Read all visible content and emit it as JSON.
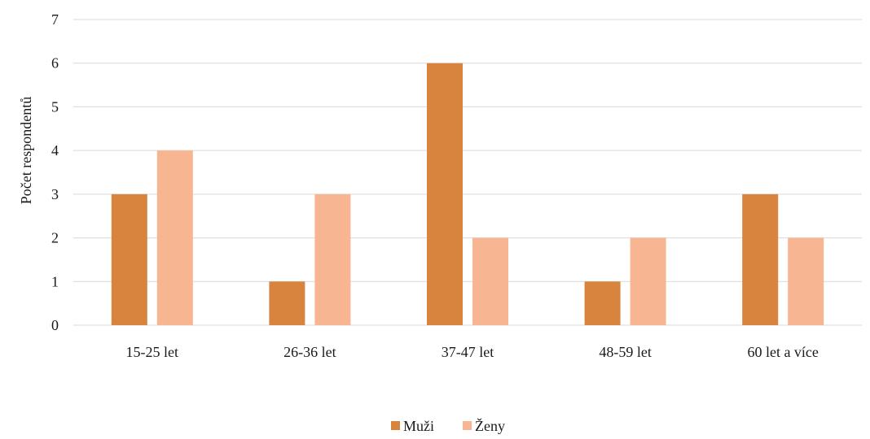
{
  "chart_data": {
    "type": "bar",
    "title": "",
    "xlabel": "",
    "ylabel": "Počet respondentů",
    "categories": [
      "15-25 let",
      "26-36 let",
      "37-47 let",
      "48-59 let",
      "60 let a více"
    ],
    "series": [
      {
        "name": "Muži",
        "values": [
          3,
          1,
          6,
          1,
          3
        ],
        "color": "#D9843E"
      },
      {
        "name": "Ženy",
        "values": [
          4,
          3,
          2,
          2,
          2
        ],
        "color": "#F8B591"
      }
    ],
    "ylim": [
      0,
      7
    ],
    "yticks": [
      0,
      1,
      2,
      3,
      4,
      5,
      6,
      7
    ],
    "grid": true,
    "gridColor": "#d9d9d9",
    "legend": "bottom-center"
  }
}
